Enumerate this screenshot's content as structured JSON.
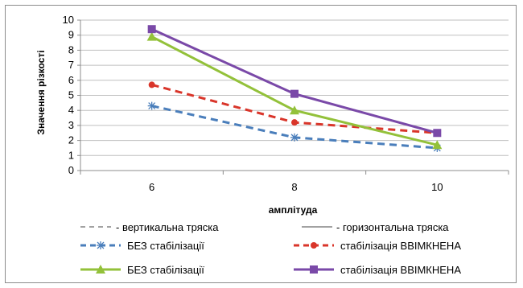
{
  "chart_data": {
    "type": "line",
    "xlabel": "амплітуда",
    "ylabel": "Значення різкості",
    "categories": [
      "6",
      "8",
      "10"
    ],
    "ylim": [
      0,
      10
    ],
    "yticks": [
      "0",
      "1",
      "2",
      "3",
      "4",
      "5",
      "6",
      "7",
      "8",
      "9",
      "10"
    ],
    "grid": "horizontal",
    "legend_headers": {
      "dashed": "- вертикальна тряска",
      "solid": "- горизонтальна тряска"
    },
    "series": [
      {
        "name": "БЕЗ стабілізації",
        "values": [
          4.3,
          2.2,
          1.5
        ],
        "color": "#4a7ebb",
        "style": "dashed",
        "marker": "star"
      },
      {
        "name": "стабілізація ВВІМКНЕНА",
        "values": [
          5.7,
          3.2,
          2.5
        ],
        "color": "#d9352a",
        "style": "dashed",
        "marker": "circle"
      },
      {
        "name": "БЕЗ стабілізації",
        "values": [
          8.9,
          4.0,
          1.7
        ],
        "color": "#93c13a",
        "style": "solid",
        "marker": "triangle"
      },
      {
        "name": "стабілізація ВВІМКНЕНА",
        "values": [
          9.4,
          5.1,
          2.5
        ],
        "color": "#7a49a8",
        "style": "solid",
        "marker": "square"
      }
    ]
  }
}
